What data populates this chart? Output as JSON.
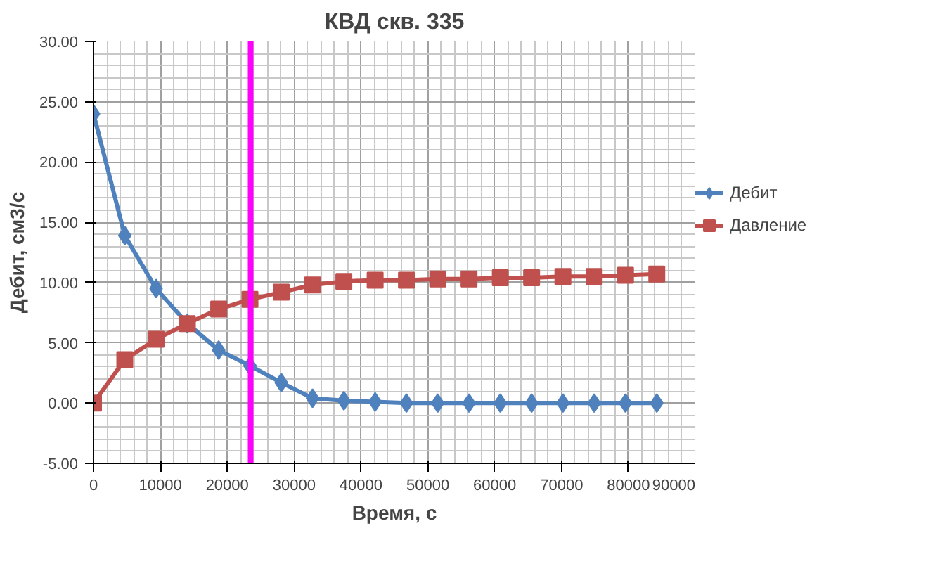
{
  "chart_data": {
    "type": "line",
    "title": "КВД скв. 335",
    "xlabel": "Время, с",
    "ylabel": "Дебит, см3/с",
    "x": [
      0,
      4680,
      9360,
      14040,
      18720,
      23400,
      28080,
      32760,
      37440,
      42120,
      46800,
      51480,
      56160,
      60840,
      65520,
      70200,
      74880,
      79560,
      84240
    ],
    "series": [
      {
        "name": "Дебит",
        "color": "#4f81bd",
        "marker": "diamond",
        "values": [
          24.0,
          13.9,
          9.5,
          6.6,
          4.4,
          3.1,
          1.7,
          0.4,
          0.2,
          0.1,
          0.0,
          0.0,
          0.0,
          0.0,
          0.0,
          0.0,
          0.0,
          0.0,
          0.0
        ]
      },
      {
        "name": "Давление",
        "color": "#c0504d",
        "marker": "square",
        "values": [
          0.0,
          3.6,
          5.3,
          6.6,
          7.8,
          8.6,
          9.2,
          9.8,
          10.1,
          10.2,
          10.2,
          10.3,
          10.3,
          10.4,
          10.4,
          10.5,
          10.5,
          10.6,
          10.7
        ]
      }
    ],
    "xlim": [
      0,
      90000
    ],
    "xticks": [
      0,
      10000,
      20000,
      30000,
      40000,
      50000,
      60000,
      70000,
      80000,
      90000
    ],
    "ylim": [
      -5,
      30
    ],
    "yticks": [
      {
        "value": -5,
        "label": "-5.00"
      },
      {
        "value": 0,
        "label": "0.00"
      },
      {
        "value": 5,
        "label": "5.00"
      },
      {
        "value": 10,
        "label": "10.00"
      },
      {
        "value": 15,
        "label": "15.00"
      },
      {
        "value": 20,
        "label": "20.00"
      },
      {
        "value": 25,
        "label": "25.00"
      },
      {
        "value": 30,
        "label": "30.00"
      }
    ],
    "ref_lines": [
      {
        "axis": "x",
        "value": 23500,
        "label": null,
        "color": "#ff00ff"
      }
    ],
    "grid": true,
    "legend": "right",
    "line_style": "solid"
  }
}
